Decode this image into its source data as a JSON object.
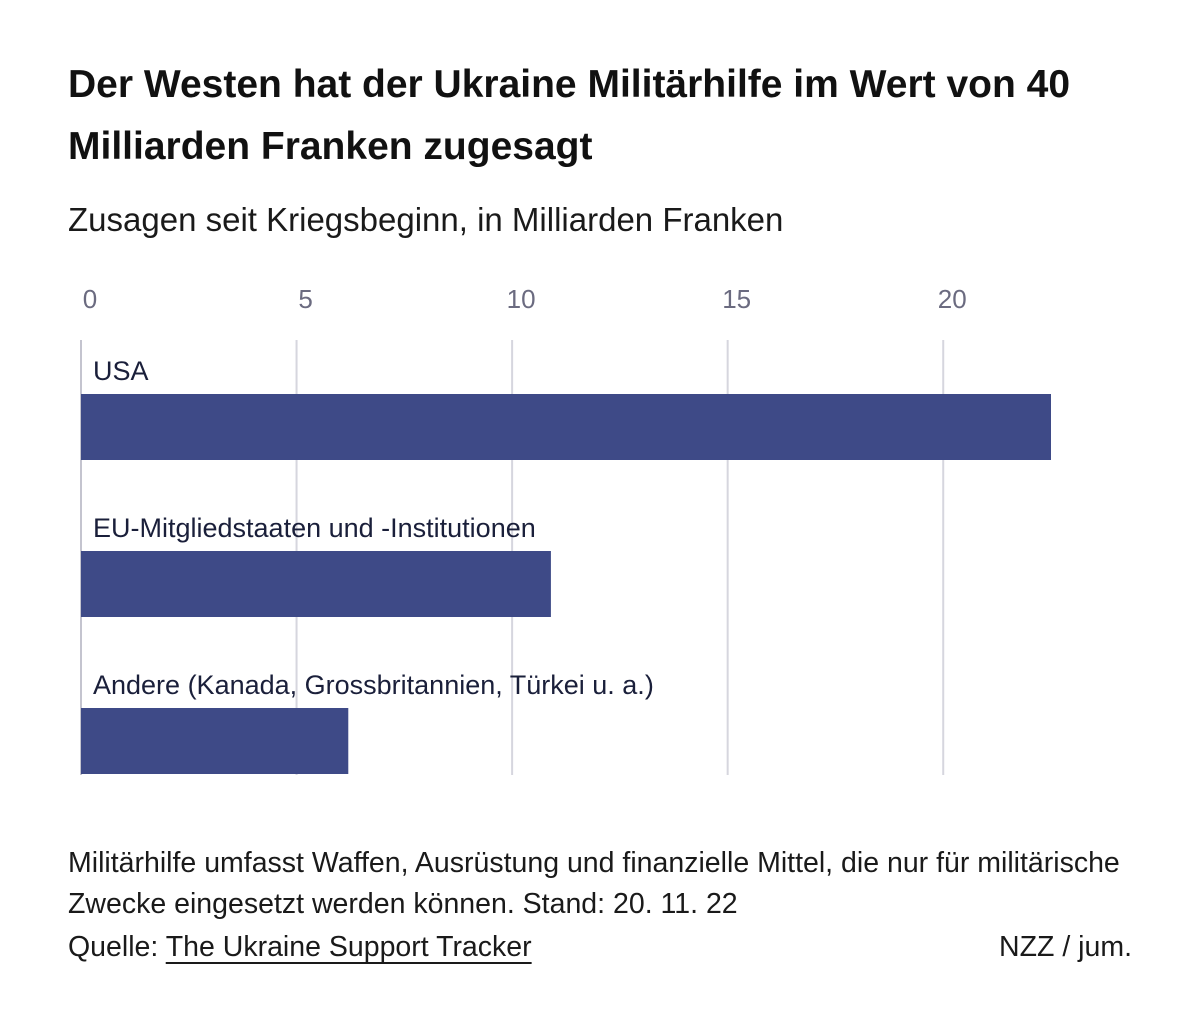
{
  "chart_data": {
    "type": "bar",
    "orientation": "horizontal",
    "title": "Der Westen hat der Ukraine Militärhilfe im Wert von 40 Milliarden Franken zugesagt",
    "subtitle": "Zusagen seit Kriegsbeginn, in Milliarden Franken",
    "categories": [
      "USA",
      "EU-Mitgliedstaaten und -Institutionen",
      "Andere (Kanada, Grossbritannien, Türkei u. a.)"
    ],
    "values": [
      22.5,
      10.9,
      6.2
    ],
    "xticks": [
      0,
      5,
      10,
      15,
      20
    ],
    "xlim": [
      0,
      22.5
    ],
    "bar_color": "#3e4a87",
    "grid_color": "#d6d6de",
    "grid": true,
    "xlabel": "",
    "ylabel": ""
  },
  "footer": {
    "note": "Militärhilfe umfasst Waffen, Ausrüstung und finanzielle Mittel, die nur für militärische Zwecke eingesetzt werden können. Stand: 20. 11. 22",
    "source_label": "Quelle:",
    "source_link": "The Ukraine Support Tracker",
    "credit": "NZZ / jum."
  }
}
